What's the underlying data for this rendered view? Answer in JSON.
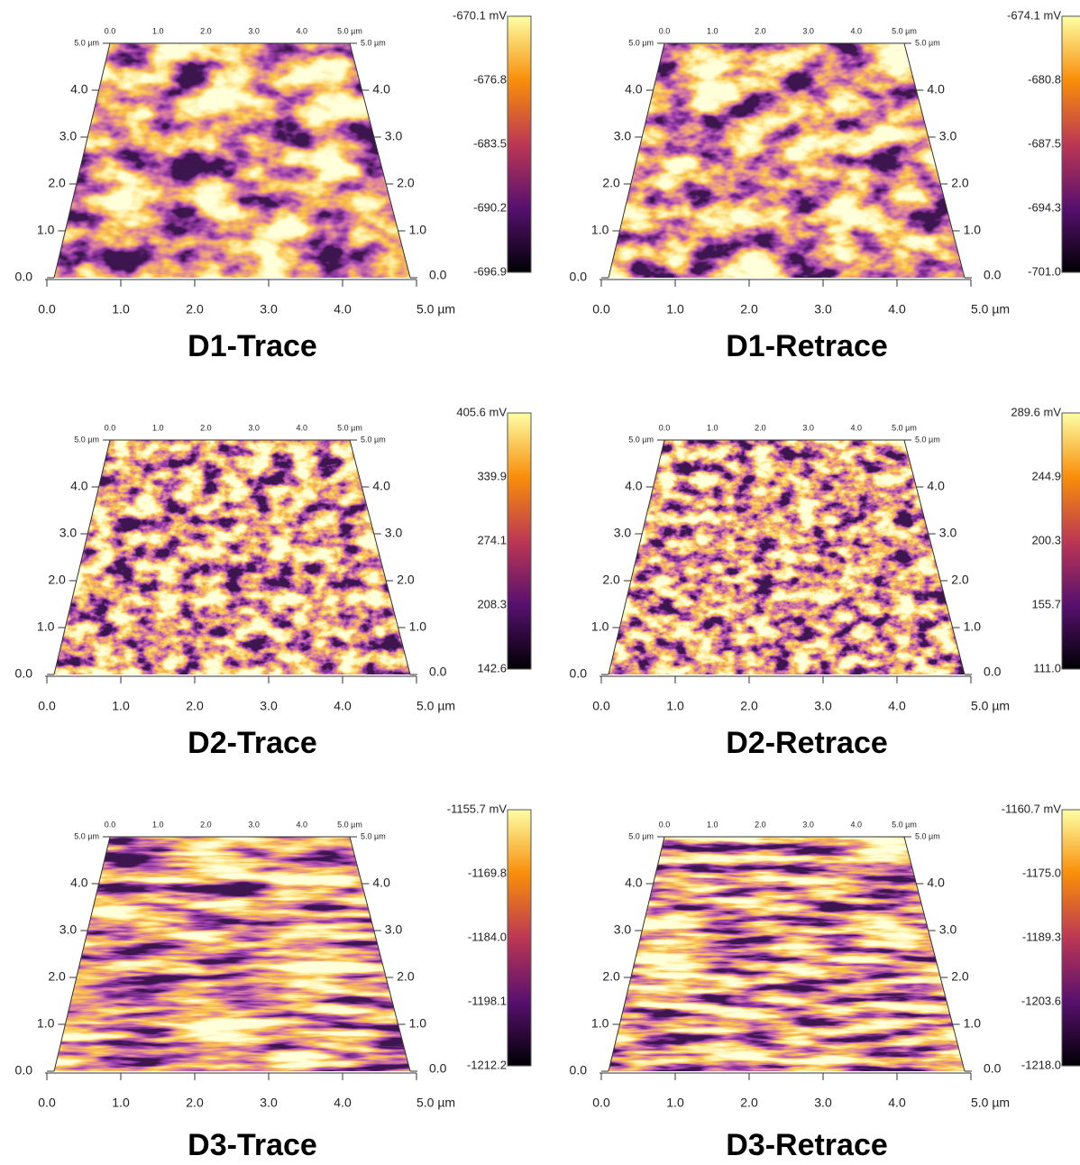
{
  "axis_ticks": [
    "0.0",
    "1.0",
    "2.0",
    "3.0",
    "4.0",
    "5.0 µm"
  ],
  "panels": [
    {
      "title": "D1-Trace",
      "colorbar": [
        "-670.1 mV",
        "-676.8",
        "-683.5",
        "-690.2",
        "-696.9"
      ]
    },
    {
      "title": "D1-Retrace",
      "colorbar": [
        "-674.1 mV",
        "-680.8",
        "-687.5",
        "-694.3",
        "-701.0"
      ]
    },
    {
      "title": "D2-Trace",
      "colorbar": [
        "405.6 mV",
        "339.9",
        "274.1",
        "208.3",
        "142.6"
      ]
    },
    {
      "title": "D2-Retrace",
      "colorbar": [
        "289.6 mV",
        "244.9",
        "200.3",
        "155.7",
        "111.0"
      ]
    },
    {
      "title": "D3-Trace",
      "colorbar": [
        "-1155.7 mV",
        "-1169.8",
        "-1184.0",
        "-1198.1",
        "-1212.2"
      ]
    },
    {
      "title": "D3-Retrace",
      "colorbar": [
        "-1160.7 mV",
        "-1175.0",
        "-1189.3",
        "-1203.6",
        "-1218.0"
      ]
    }
  ]
}
